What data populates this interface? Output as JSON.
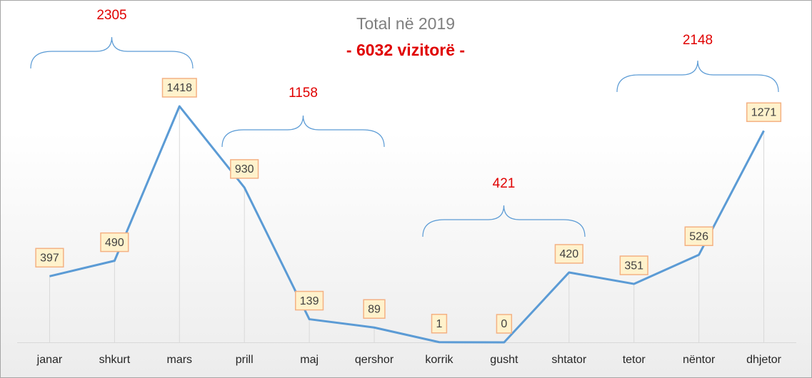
{
  "chart_data": {
    "type": "line",
    "title": "Total në 2019",
    "subtitle": "- 6032 vizitorë -",
    "categories": [
      "janar",
      "shkurt",
      "mars",
      "prill",
      "maj",
      "qershor",
      "korrik",
      "gusht",
      "shtator",
      "tetor",
      "nëntor",
      "dhjetor"
    ],
    "values": [
      397,
      490,
      1418,
      930,
      139,
      89,
      1,
      0,
      420,
      351,
      526,
      1271
    ],
    "color": "#5b9bd5",
    "annotations": [
      "2305",
      "1158",
      "421",
      "2148"
    ]
  }
}
